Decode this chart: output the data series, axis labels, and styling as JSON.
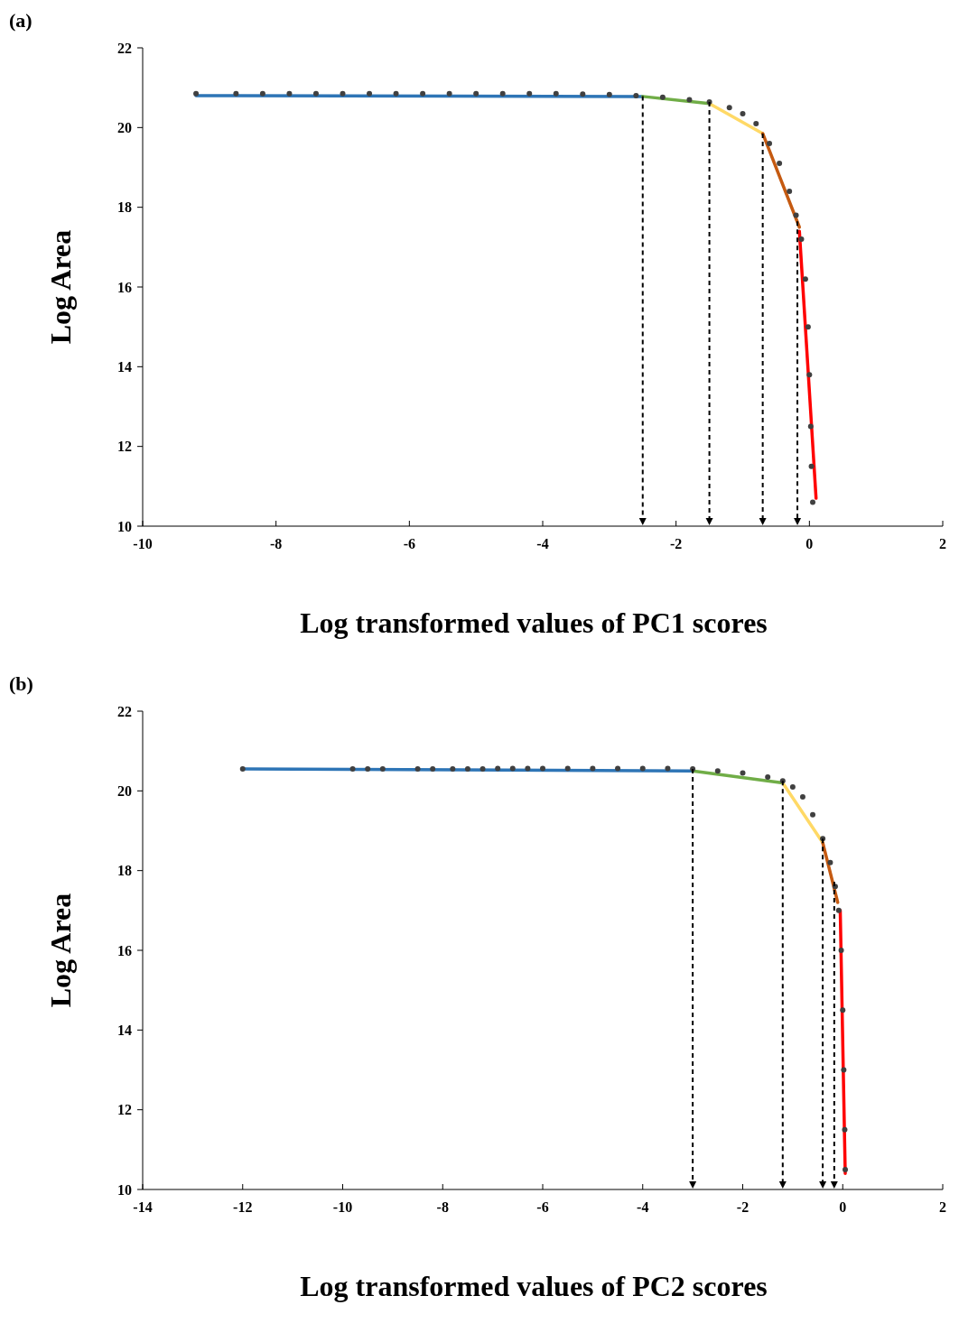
{
  "chart_data": [
    {
      "type": "scatter",
      "title": "(a)",
      "xlabel": "Log transformed values of PC1 scores",
      "ylabel": "Log Area",
      "xlim": [
        -10,
        2
      ],
      "xticks": [
        -10,
        -8,
        -6,
        -4,
        -2,
        0,
        2
      ],
      "ylim": [
        10,
        22
      ],
      "yticks": [
        10,
        12,
        14,
        16,
        18,
        20,
        22
      ],
      "series": [
        {
          "marker": "circle",
          "color": "#404040",
          "x": [
            -9.2,
            -8.6,
            -8.2,
            -7.8,
            -7.4,
            -7.0,
            -6.6,
            -6.2,
            -5.8,
            -5.4,
            -5.0,
            -4.6,
            -4.2,
            -3.8,
            -3.4,
            -3.0,
            -2.6,
            -2.2,
            -1.8,
            -1.5,
            -1.2,
            -1.0,
            -0.8,
            -0.6,
            -0.45,
            -0.3,
            -0.2,
            -0.12,
            -0.06,
            -0.02,
            0.0,
            0.02,
            0.03,
            0.05
          ],
          "values": [
            20.85,
            20.85,
            20.85,
            20.85,
            20.85,
            20.85,
            20.85,
            20.85,
            20.85,
            20.85,
            20.85,
            20.85,
            20.85,
            20.85,
            20.84,
            20.83,
            20.8,
            20.76,
            20.7,
            20.64,
            20.5,
            20.35,
            20.1,
            19.6,
            19.1,
            18.4,
            17.8,
            17.2,
            16.2,
            15.0,
            13.8,
            12.5,
            11.5,
            10.6
          ]
        },
        {
          "type": "line",
          "color": "#2e75b6",
          "x": [
            -9.2,
            -2.5
          ],
          "values": [
            20.8,
            20.78
          ]
        },
        {
          "type": "line",
          "color": "#70ad47",
          "x": [
            -2.5,
            -1.5
          ],
          "values": [
            20.78,
            20.6
          ]
        },
        {
          "type": "line",
          "color": "#ffd966",
          "x": [
            -1.5,
            -0.7
          ],
          "values": [
            20.6,
            19.85
          ]
        },
        {
          "type": "line",
          "color": "#c55a11",
          "x": [
            -0.7,
            -0.15
          ],
          "values": [
            19.85,
            17.5
          ]
        },
        {
          "type": "line",
          "color": "#ff0000",
          "x": [
            -0.15,
            0.1
          ],
          "values": [
            17.4,
            10.7
          ]
        }
      ],
      "ref_lines": [
        {
          "axis": "x",
          "value": -2.5,
          "color": "#000000",
          "line_style": "dashed"
        },
        {
          "axis": "x",
          "value": -1.5,
          "color": "#000000",
          "line_style": "dashed"
        },
        {
          "axis": "x",
          "value": -0.7,
          "color": "#000000",
          "line_style": "dashed"
        },
        {
          "axis": "x",
          "value": -0.18,
          "color": "#000000",
          "line_style": "dashed"
        }
      ]
    },
    {
      "type": "scatter",
      "title": "(b)",
      "xlabel": "Log transformed values of PC2 scores",
      "ylabel": "Log Area",
      "xlim": [
        -14,
        2
      ],
      "xticks": [
        -14,
        -12,
        -10,
        -8,
        -6,
        -4,
        -2,
        0,
        2
      ],
      "ylim": [
        10,
        22
      ],
      "yticks": [
        10,
        12,
        14,
        16,
        18,
        20,
        22
      ],
      "series": [
        {
          "marker": "circle",
          "color": "#404040",
          "x": [
            -12,
            -9.8,
            -9.5,
            -9.2,
            -8.5,
            -8.2,
            -7.8,
            -7.5,
            -7.2,
            -6.9,
            -6.6,
            -6.3,
            -6.0,
            -5.5,
            -5.0,
            -4.5,
            -4.0,
            -3.5,
            -3.0,
            -2.5,
            -2.0,
            -1.5,
            -1.2,
            -1.0,
            -0.8,
            -0.6,
            -0.4,
            -0.25,
            -0.15,
            -0.08,
            -0.03,
            0.0,
            0.02,
            0.04,
            0.05
          ],
          "values": [
            20.55,
            20.55,
            20.55,
            20.55,
            20.55,
            20.55,
            20.55,
            20.55,
            20.55,
            20.56,
            20.56,
            20.56,
            20.56,
            20.56,
            20.56,
            20.56,
            20.56,
            20.56,
            20.55,
            20.5,
            20.45,
            20.35,
            20.25,
            20.1,
            19.85,
            19.4,
            18.8,
            18.2,
            17.6,
            17.0,
            16.0,
            14.5,
            13.0,
            11.5,
            10.5
          ]
        },
        {
          "type": "line",
          "color": "#2e75b6",
          "x": [
            -12,
            -3.0
          ],
          "values": [
            20.55,
            20.5
          ]
        },
        {
          "type": "line",
          "color": "#70ad47",
          "x": [
            -3.0,
            -1.2
          ],
          "values": [
            20.5,
            20.2
          ]
        },
        {
          "type": "line",
          "color": "#ffd966",
          "x": [
            -1.2,
            -0.4
          ],
          "values": [
            20.2,
            18.7
          ]
        },
        {
          "type": "line",
          "color": "#c55a11",
          "x": [
            -0.4,
            -0.1
          ],
          "values": [
            18.7,
            17.2
          ]
        },
        {
          "type": "line",
          "color": "#ff0000",
          "x": [
            -0.05,
            0.05
          ],
          "values": [
            17.0,
            10.4
          ]
        }
      ],
      "ref_lines": [
        {
          "axis": "x",
          "value": -3.0,
          "color": "#000000",
          "line_style": "dashed"
        },
        {
          "axis": "x",
          "value": -1.2,
          "color": "#000000",
          "line_style": "dashed"
        },
        {
          "axis": "x",
          "value": -0.4,
          "color": "#000000",
          "line_style": "dashed"
        },
        {
          "axis": "x",
          "value": -0.17,
          "color": "#000000",
          "line_style": "dashed"
        }
      ]
    }
  ]
}
